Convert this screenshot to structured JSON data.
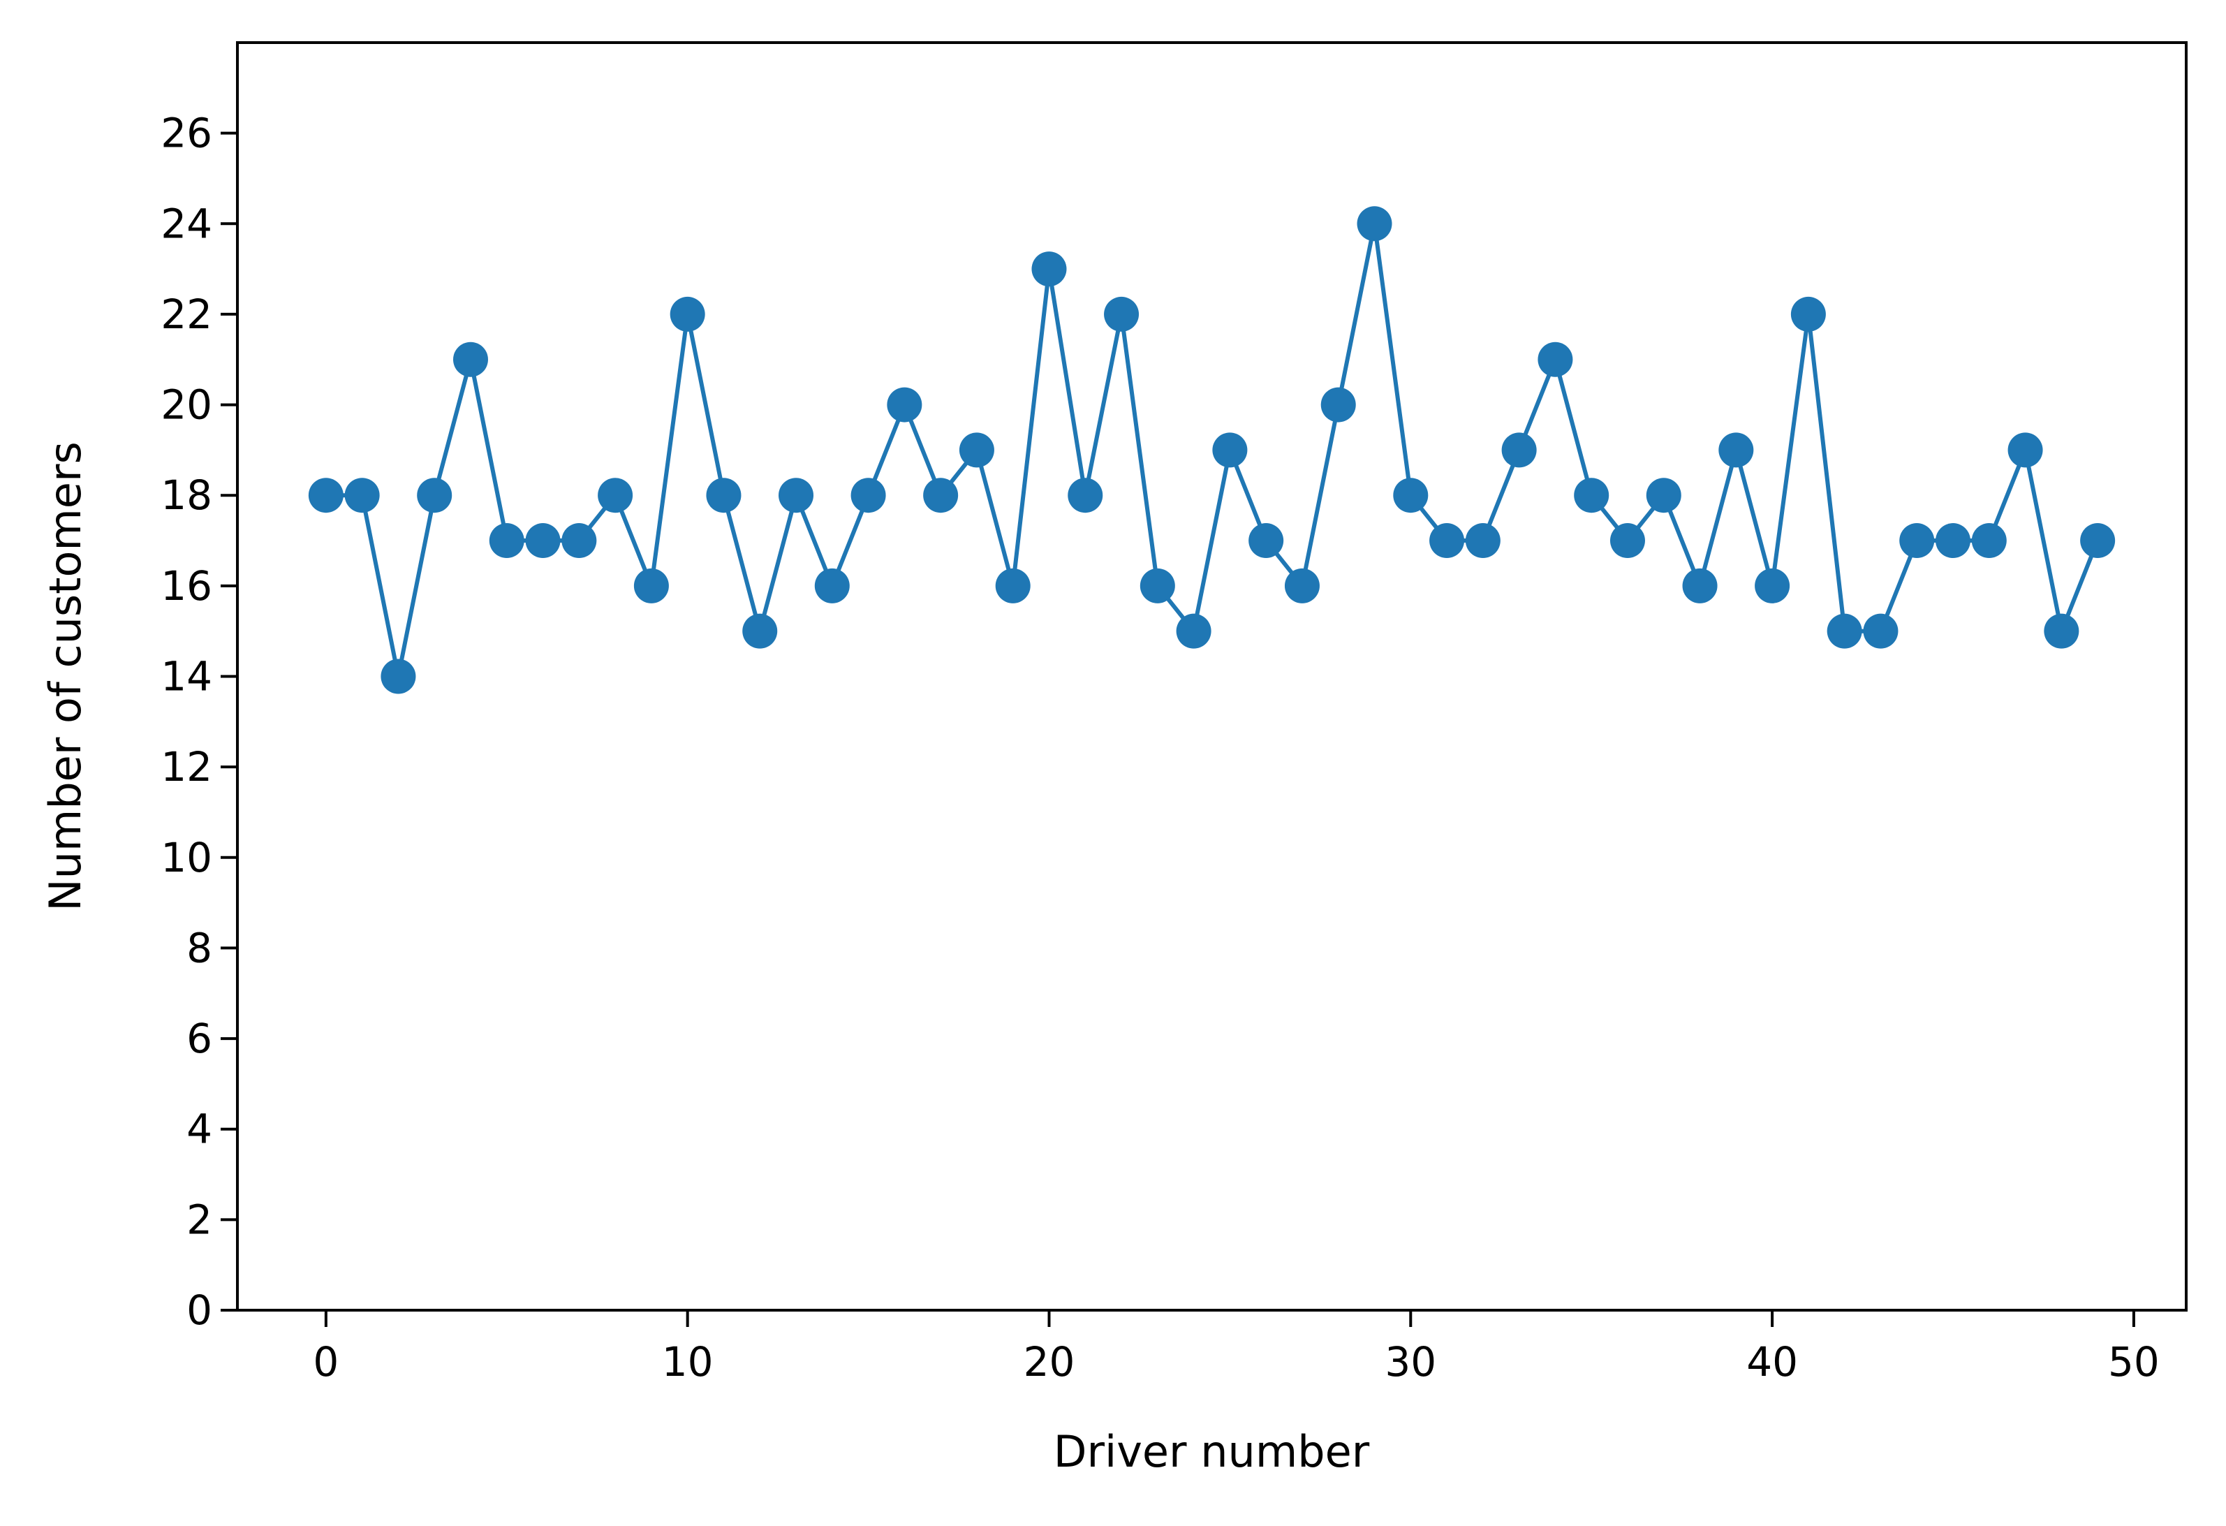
{
  "chart_data": {
    "type": "line",
    "title": "",
    "xlabel": "Driver number",
    "ylabel": "Number of customers",
    "xlim": [
      -2.45,
      51.45
    ],
    "ylim": [
      0,
      28
    ],
    "xticks": [
      0,
      10,
      20,
      30,
      40,
      50
    ],
    "yticks": [
      0,
      2,
      4,
      6,
      8,
      10,
      12,
      14,
      16,
      18,
      20,
      22,
      24,
      26
    ],
    "grid": false,
    "marker": "circle",
    "series": [
      {
        "color": "#1f77b4",
        "x": [
          0,
          1,
          2,
          3,
          4,
          5,
          6,
          7,
          8,
          9,
          10,
          11,
          12,
          13,
          14,
          15,
          16,
          17,
          18,
          19,
          20,
          21,
          22,
          23,
          24,
          25,
          26,
          27,
          28,
          29,
          30,
          31,
          32,
          33,
          34,
          35,
          36,
          37,
          38,
          39,
          40,
          41,
          42,
          43,
          44,
          45,
          46,
          47,
          48,
          49
        ],
        "values": [
          18,
          18,
          14,
          18,
          21,
          17,
          17,
          17,
          18,
          16,
          22,
          18,
          15,
          18,
          16,
          18,
          20,
          18,
          19,
          16,
          23,
          18,
          22,
          16,
          15,
          19,
          17,
          16,
          20,
          24,
          18,
          17,
          17,
          19,
          21,
          18,
          17,
          18,
          16,
          19,
          16,
          22,
          15,
          15,
          17,
          17,
          17,
          19,
          15,
          17
        ]
      }
    ]
  }
}
